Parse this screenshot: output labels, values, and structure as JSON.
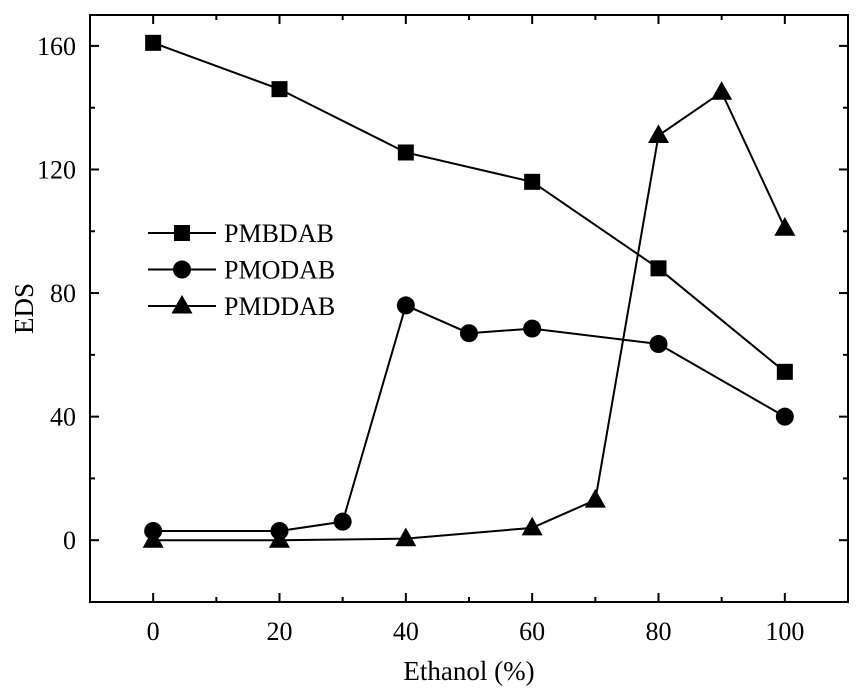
{
  "chart_data": {
    "type": "line",
    "xlabel": "Ethanol (%)",
    "ylabel": "EDS",
    "xlim": [
      -10,
      110
    ],
    "ylim": [
      -20,
      170
    ],
    "x_ticks": [
      0,
      20,
      40,
      60,
      80,
      100
    ],
    "y_ticks": [
      0,
      40,
      80,
      120,
      160
    ],
    "x_minor_ticks": [
      10,
      30,
      50,
      70,
      90
    ],
    "y_minor_ticks": [
      20,
      60,
      100,
      140
    ],
    "grid": false,
    "legend_position": "center-left",
    "series": [
      {
        "name": "PMBDAB",
        "marker": "square",
        "x": [
          0,
          20,
          40,
          60,
          80,
          100
        ],
        "y": [
          161,
          146,
          125.5,
          116,
          88,
          54.5
        ]
      },
      {
        "name": "PMODAB",
        "marker": "circle",
        "x": [
          0,
          20,
          30,
          40,
          50,
          60,
          80,
          100
        ],
        "y": [
          3,
          3,
          6,
          76,
          67,
          68.5,
          63.5,
          40
        ]
      },
      {
        "name": "PMDDAB",
        "marker": "triangle",
        "x": [
          0,
          20,
          40,
          60,
          70,
          80,
          90,
          100
        ],
        "y": [
          0,
          0,
          0.5,
          4,
          13,
          131,
          145,
          101
        ]
      }
    ]
  }
}
